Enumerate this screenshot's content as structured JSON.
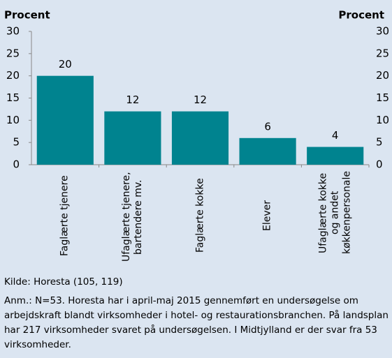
{
  "chart_data": {
    "type": "bar",
    "y_label": "Procent",
    "y2_label": "Procent",
    "categories": [
      "Faglærte tjenere",
      "Ufaglærte tjenere, bartendere mv.",
      "Faglærte kokke",
      "Elever",
      "Ufaglærte kokke og andet køkkenpersonale"
    ],
    "values": [
      20,
      12,
      12,
      6,
      4
    ],
    "color": "#00838f",
    "ylim": [
      0,
      30
    ],
    "yticks": [
      0,
      5,
      10,
      15,
      20,
      25,
      30
    ],
    "y2lim": [
      0,
      30
    ],
    "y2ticks": [
      0,
      5,
      10,
      15,
      20,
      25,
      30
    ],
    "grid": false
  },
  "source": "Kilde: Horesta (105, 119)",
  "note": "Anm.: N=53. Horesta har i april-maj 2015 gennemført en undersøgelse om arbejdskraft blandt virksomheder i hotel- og restaurationsbranchen. På landsplan har 217 virksomheder svaret på undersøgelsen. I Midtjyl­land er der svar fra 53 virksomheder."
}
